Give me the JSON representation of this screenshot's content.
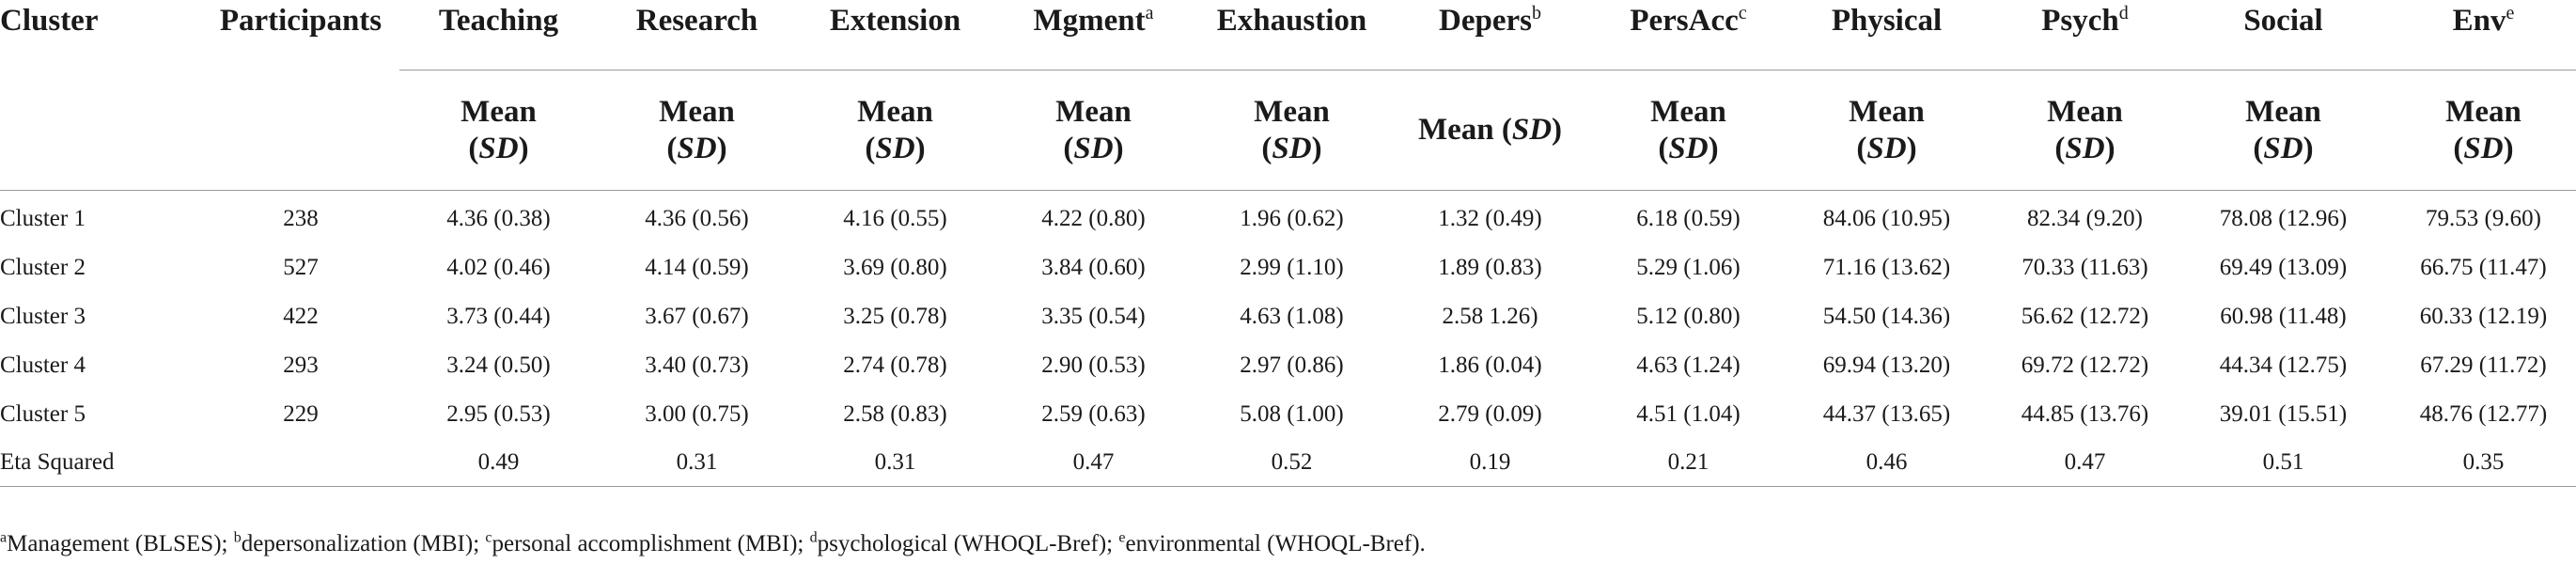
{
  "table": {
    "header_top": {
      "cluster": "Cluster",
      "participants": "Participants",
      "columns": [
        {
          "label": "Teaching",
          "sup": ""
        },
        {
          "label": "Research",
          "sup": ""
        },
        {
          "label": "Extension",
          "sup": ""
        },
        {
          "label": "Mgment",
          "sup": "a"
        },
        {
          "label": "Exhaustion",
          "sup": ""
        },
        {
          "label": "Depers",
          "sup": "b"
        },
        {
          "label": "PersAcc",
          "sup": "c"
        },
        {
          "label": "Physical",
          "sup": ""
        },
        {
          "label": "Psych",
          "sup": "d"
        },
        {
          "label": "Social",
          "sup": ""
        },
        {
          "label": "Env",
          "sup": "e"
        }
      ]
    },
    "subheader": {
      "mean": "Mean",
      "sd": "SD",
      "open": "(",
      "close": ")"
    },
    "rows": [
      {
        "label": "Cluster 1",
        "participants": "238",
        "values": [
          "4.36 (0.38)",
          "4.36 (0.56)",
          "4.16 (0.55)",
          "4.22 (0.80)",
          "1.96 (0.62)",
          "1.32 (0.49)",
          "6.18 (0.59)",
          "84.06 (10.95)",
          "82.34 (9.20)",
          "78.08 (12.96)",
          "79.53 (9.60)"
        ]
      },
      {
        "label": "Cluster 2",
        "participants": "527",
        "values": [
          "4.02 (0.46)",
          "4.14 (0.59)",
          "3.69 (0.80)",
          "3.84 (0.60)",
          "2.99 (1.10)",
          "1.89 (0.83)",
          "5.29 (1.06)",
          "71.16 (13.62)",
          "70.33 (11.63)",
          "69.49 (13.09)",
          "66.75 (11.47)"
        ]
      },
      {
        "label": "Cluster 3",
        "participants": "422",
        "values": [
          "3.73 (0.44)",
          "3.67 (0.67)",
          "3.25 (0.78)",
          "3.35 (0.54)",
          "4.63 (1.08)",
          "2.58 1.26)",
          "5.12 (0.80)",
          "54.50 (14.36)",
          "56.62 (12.72)",
          "60.98 (11.48)",
          "60.33 (12.19)"
        ]
      },
      {
        "label": "Cluster 4",
        "participants": "293",
        "values": [
          "3.24 (0.50)",
          "3.40 (0.73)",
          "2.74 (0.78)",
          "2.90 (0.53)",
          "2.97 (0.86)",
          "1.86 (0.04)",
          "4.63 (1.24)",
          "69.94 (13.20)",
          "69.72 (12.72)",
          "44.34 (12.75)",
          "67.29 (11.72)"
        ]
      },
      {
        "label": "Cluster 5",
        "participants": "229",
        "values": [
          "2.95 (0.53)",
          "3.00 (0.75)",
          "2.58 (0.83)",
          "2.59 (0.63)",
          "5.08 (1.00)",
          "2.79 (0.09)",
          "4.51 (1.04)",
          "44.37 (13.65)",
          "44.85 (13.76)",
          "39.01 (15.51)",
          "48.76 (12.77)"
        ]
      },
      {
        "label": "Eta Squared",
        "participants": "",
        "values": [
          "0.49",
          "0.31",
          "0.31",
          "0.47",
          "0.52",
          "0.19",
          "0.21",
          "0.46",
          "0.47",
          "0.51",
          "0.35"
        ]
      }
    ]
  },
  "footnotes": [
    {
      "sup": "a",
      "text": "Management (BLSES); "
    },
    {
      "sup": "b",
      "text": "depersonalization (MBI); "
    },
    {
      "sup": "c",
      "text": "personal accomplishment (MBI); "
    },
    {
      "sup": "d",
      "text": "psychological (WHOQL-Bref); "
    },
    {
      "sup": "e",
      "text": "environmental (WHOQL-Bref)."
    }
  ]
}
